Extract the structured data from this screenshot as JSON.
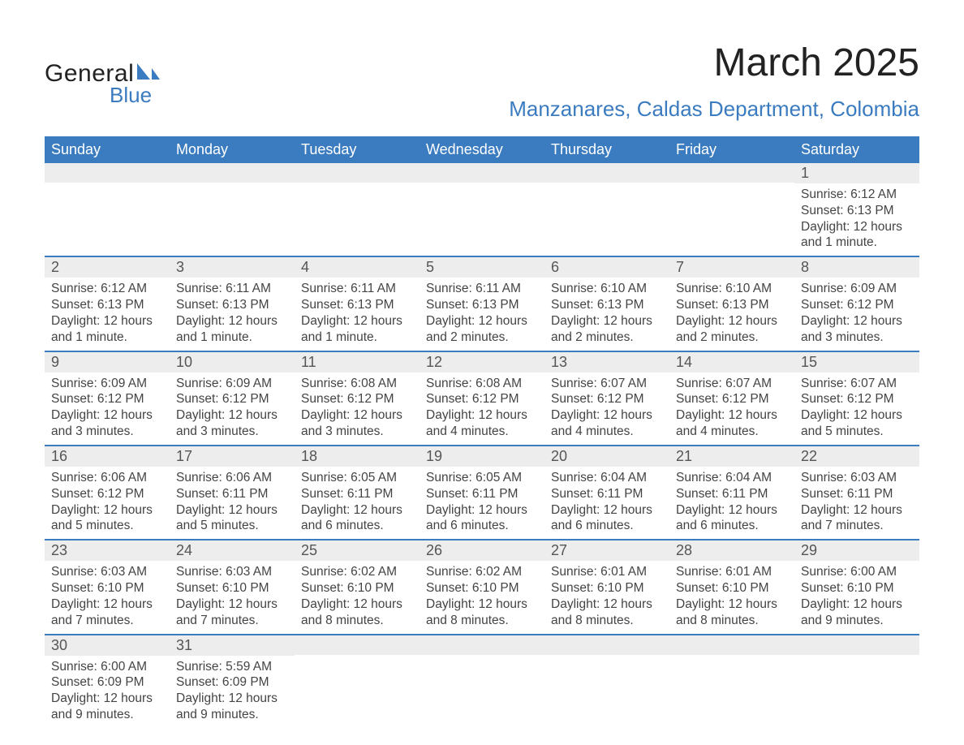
{
  "logo": {
    "line1": "General",
    "line2": "Blue",
    "sail_color": "#3b7bbf"
  },
  "title": "March 2025",
  "location": "Manzanares, Caldas Department, Colombia",
  "colors": {
    "header_bg": "#3b7bbf",
    "header_text": "#ffffff",
    "daynum_bg": "#ededed",
    "daynum_text": "#555555",
    "body_text": "#444444",
    "divider": "#3b7bbf",
    "title_text": "#222222",
    "location_text": "#3b7bbf"
  },
  "typography": {
    "title_fontsize": 48,
    "location_fontsize": 26,
    "weekday_fontsize": 18,
    "daynum_fontsize": 18,
    "body_fontsize": 15.5,
    "font_family": "Arial"
  },
  "weekdays": [
    "Sunday",
    "Monday",
    "Tuesday",
    "Wednesday",
    "Thursday",
    "Friday",
    "Saturday"
  ],
  "weeks": [
    [
      null,
      null,
      null,
      null,
      null,
      null,
      {
        "n": "1",
        "sr": "Sunrise: 6:12 AM",
        "ss": "Sunset: 6:13 PM",
        "d1": "Daylight: 12 hours",
        "d2": "and 1 minute."
      }
    ],
    [
      {
        "n": "2",
        "sr": "Sunrise: 6:12 AM",
        "ss": "Sunset: 6:13 PM",
        "d1": "Daylight: 12 hours",
        "d2": "and 1 minute."
      },
      {
        "n": "3",
        "sr": "Sunrise: 6:11 AM",
        "ss": "Sunset: 6:13 PM",
        "d1": "Daylight: 12 hours",
        "d2": "and 1 minute."
      },
      {
        "n": "4",
        "sr": "Sunrise: 6:11 AM",
        "ss": "Sunset: 6:13 PM",
        "d1": "Daylight: 12 hours",
        "d2": "and 1 minute."
      },
      {
        "n": "5",
        "sr": "Sunrise: 6:11 AM",
        "ss": "Sunset: 6:13 PM",
        "d1": "Daylight: 12 hours",
        "d2": "and 2 minutes."
      },
      {
        "n": "6",
        "sr": "Sunrise: 6:10 AM",
        "ss": "Sunset: 6:13 PM",
        "d1": "Daylight: 12 hours",
        "d2": "and 2 minutes."
      },
      {
        "n": "7",
        "sr": "Sunrise: 6:10 AM",
        "ss": "Sunset: 6:13 PM",
        "d1": "Daylight: 12 hours",
        "d2": "and 2 minutes."
      },
      {
        "n": "8",
        "sr": "Sunrise: 6:09 AM",
        "ss": "Sunset: 6:12 PM",
        "d1": "Daylight: 12 hours",
        "d2": "and 3 minutes."
      }
    ],
    [
      {
        "n": "9",
        "sr": "Sunrise: 6:09 AM",
        "ss": "Sunset: 6:12 PM",
        "d1": "Daylight: 12 hours",
        "d2": "and 3 minutes."
      },
      {
        "n": "10",
        "sr": "Sunrise: 6:09 AM",
        "ss": "Sunset: 6:12 PM",
        "d1": "Daylight: 12 hours",
        "d2": "and 3 minutes."
      },
      {
        "n": "11",
        "sr": "Sunrise: 6:08 AM",
        "ss": "Sunset: 6:12 PM",
        "d1": "Daylight: 12 hours",
        "d2": "and 3 minutes."
      },
      {
        "n": "12",
        "sr": "Sunrise: 6:08 AM",
        "ss": "Sunset: 6:12 PM",
        "d1": "Daylight: 12 hours",
        "d2": "and 4 minutes."
      },
      {
        "n": "13",
        "sr": "Sunrise: 6:07 AM",
        "ss": "Sunset: 6:12 PM",
        "d1": "Daylight: 12 hours",
        "d2": "and 4 minutes."
      },
      {
        "n": "14",
        "sr": "Sunrise: 6:07 AM",
        "ss": "Sunset: 6:12 PM",
        "d1": "Daylight: 12 hours",
        "d2": "and 4 minutes."
      },
      {
        "n": "15",
        "sr": "Sunrise: 6:07 AM",
        "ss": "Sunset: 6:12 PM",
        "d1": "Daylight: 12 hours",
        "d2": "and 5 minutes."
      }
    ],
    [
      {
        "n": "16",
        "sr": "Sunrise: 6:06 AM",
        "ss": "Sunset: 6:12 PM",
        "d1": "Daylight: 12 hours",
        "d2": "and 5 minutes."
      },
      {
        "n": "17",
        "sr": "Sunrise: 6:06 AM",
        "ss": "Sunset: 6:11 PM",
        "d1": "Daylight: 12 hours",
        "d2": "and 5 minutes."
      },
      {
        "n": "18",
        "sr": "Sunrise: 6:05 AM",
        "ss": "Sunset: 6:11 PM",
        "d1": "Daylight: 12 hours",
        "d2": "and 6 minutes."
      },
      {
        "n": "19",
        "sr": "Sunrise: 6:05 AM",
        "ss": "Sunset: 6:11 PM",
        "d1": "Daylight: 12 hours",
        "d2": "and 6 minutes."
      },
      {
        "n": "20",
        "sr": "Sunrise: 6:04 AM",
        "ss": "Sunset: 6:11 PM",
        "d1": "Daylight: 12 hours",
        "d2": "and 6 minutes."
      },
      {
        "n": "21",
        "sr": "Sunrise: 6:04 AM",
        "ss": "Sunset: 6:11 PM",
        "d1": "Daylight: 12 hours",
        "d2": "and 6 minutes."
      },
      {
        "n": "22",
        "sr": "Sunrise: 6:03 AM",
        "ss": "Sunset: 6:11 PM",
        "d1": "Daylight: 12 hours",
        "d2": "and 7 minutes."
      }
    ],
    [
      {
        "n": "23",
        "sr": "Sunrise: 6:03 AM",
        "ss": "Sunset: 6:10 PM",
        "d1": "Daylight: 12 hours",
        "d2": "and 7 minutes."
      },
      {
        "n": "24",
        "sr": "Sunrise: 6:03 AM",
        "ss": "Sunset: 6:10 PM",
        "d1": "Daylight: 12 hours",
        "d2": "and 7 minutes."
      },
      {
        "n": "25",
        "sr": "Sunrise: 6:02 AM",
        "ss": "Sunset: 6:10 PM",
        "d1": "Daylight: 12 hours",
        "d2": "and 8 minutes."
      },
      {
        "n": "26",
        "sr": "Sunrise: 6:02 AM",
        "ss": "Sunset: 6:10 PM",
        "d1": "Daylight: 12 hours",
        "d2": "and 8 minutes."
      },
      {
        "n": "27",
        "sr": "Sunrise: 6:01 AM",
        "ss": "Sunset: 6:10 PM",
        "d1": "Daylight: 12 hours",
        "d2": "and 8 minutes."
      },
      {
        "n": "28",
        "sr": "Sunrise: 6:01 AM",
        "ss": "Sunset: 6:10 PM",
        "d1": "Daylight: 12 hours",
        "d2": "and 8 minutes."
      },
      {
        "n": "29",
        "sr": "Sunrise: 6:00 AM",
        "ss": "Sunset: 6:10 PM",
        "d1": "Daylight: 12 hours",
        "d2": "and 9 minutes."
      }
    ],
    [
      {
        "n": "30",
        "sr": "Sunrise: 6:00 AM",
        "ss": "Sunset: 6:09 PM",
        "d1": "Daylight: 12 hours",
        "d2": "and 9 minutes."
      },
      {
        "n": "31",
        "sr": "Sunrise: 5:59 AM",
        "ss": "Sunset: 6:09 PM",
        "d1": "Daylight: 12 hours",
        "d2": "and 9 minutes."
      },
      null,
      null,
      null,
      null,
      null
    ]
  ]
}
